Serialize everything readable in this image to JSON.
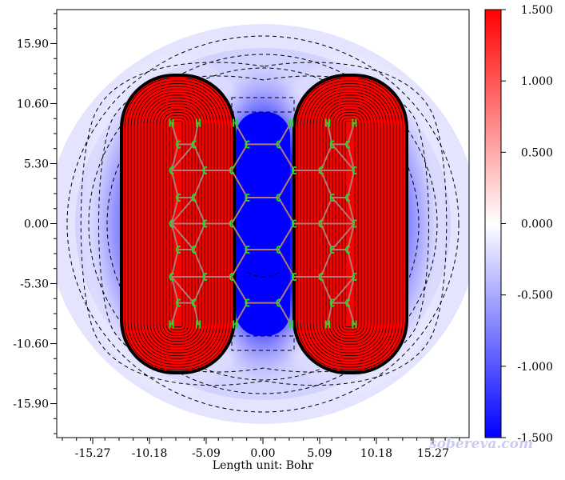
{
  "chart_data": {
    "type": "heatmap",
    "description_kind": "2D contour/color-filled plane map of a molecule",
    "x_ticks": [
      "-15.27",
      "-10.18",
      "-5.09",
      "0.00",
      "5.09",
      "10.18",
      "15.27"
    ],
    "y_ticks": [
      "15.90",
      "10.60",
      "5.30",
      "0.00",
      "-5.30",
      "-10.60",
      "-15.90"
    ],
    "xlabel": "Length unit: Bohr",
    "xlim": [
      -18.5,
      18.5
    ],
    "ylim": [
      -18.9,
      18.9
    ],
    "colorbar": {
      "ticks": [
        "1.500",
        "1.000",
        "0.500",
        "0.000",
        "-0.500",
        "-1.000",
        "-1.500"
      ],
      "range": [
        -1.5,
        1.5
      ],
      "colors": {
        "max": "#ff0000",
        "mid": "#ffffff",
        "min": "#0000ff"
      }
    },
    "atoms": [
      {
        "el": "H",
        "x": -8.2,
        "y": 8.9
      },
      {
        "el": "H",
        "x": -5.8,
        "y": 8.9
      },
      {
        "el": "H",
        "x": -2.5,
        "y": 8.9
      },
      {
        "el": "H",
        "x": 2.5,
        "y": 8.9
      },
      {
        "el": "H",
        "x": 5.8,
        "y": 8.9
      },
      {
        "el": "H",
        "x": 8.2,
        "y": 8.9
      },
      {
        "el": "C",
        "x": -7.6,
        "y": 7.0
      },
      {
        "el": "C",
        "x": -6.2,
        "y": 7.0
      },
      {
        "el": "C",
        "x": -1.4,
        "y": 7.0
      },
      {
        "el": "C",
        "x": 1.4,
        "y": 7.0
      },
      {
        "el": "C",
        "x": 6.2,
        "y": 7.0
      },
      {
        "el": "C",
        "x": 7.6,
        "y": 7.0
      },
      {
        "el": "C",
        "x": -8.2,
        "y": 4.7
      },
      {
        "el": "C",
        "x": -5.2,
        "y": 4.7
      },
      {
        "el": "C",
        "x": -2.8,
        "y": 4.7
      },
      {
        "el": "C",
        "x": 2.8,
        "y": 4.7
      },
      {
        "el": "C",
        "x": 5.2,
        "y": 4.7
      },
      {
        "el": "C",
        "x": 8.2,
        "y": 4.7
      },
      {
        "el": "C",
        "x": -7.6,
        "y": 2.3
      },
      {
        "el": "C",
        "x": -6.2,
        "y": 2.3
      },
      {
        "el": "C",
        "x": -1.4,
        "y": 2.3
      },
      {
        "el": "C",
        "x": 1.4,
        "y": 2.3
      },
      {
        "el": "C",
        "x": 6.2,
        "y": 2.3
      },
      {
        "el": "C",
        "x": 7.6,
        "y": 2.3
      },
      {
        "el": "C",
        "x": -8.2,
        "y": 0.0
      },
      {
        "el": "C",
        "x": -5.2,
        "y": 0.0
      },
      {
        "el": "C",
        "x": -2.8,
        "y": 0.0
      },
      {
        "el": "C",
        "x": 2.8,
        "y": 0.0
      },
      {
        "el": "C",
        "x": 5.2,
        "y": 0.0
      },
      {
        "el": "C",
        "x": 8.2,
        "y": 0.0
      },
      {
        "el": "C",
        "x": -7.6,
        "y": -2.3
      },
      {
        "el": "C",
        "x": -6.2,
        "y": -2.3
      },
      {
        "el": "C",
        "x": -1.4,
        "y": -2.3
      },
      {
        "el": "C",
        "x": 1.4,
        "y": -2.3
      },
      {
        "el": "C",
        "x": 6.2,
        "y": -2.3
      },
      {
        "el": "C",
        "x": 7.6,
        "y": -2.3
      },
      {
        "el": "C",
        "x": -8.2,
        "y": -4.7
      },
      {
        "el": "C",
        "x": -5.2,
        "y": -4.7
      },
      {
        "el": "C",
        "x": -2.8,
        "y": -4.7
      },
      {
        "el": "C",
        "x": 2.8,
        "y": -4.7
      },
      {
        "el": "C",
        "x": 5.2,
        "y": -4.7
      },
      {
        "el": "C",
        "x": 8.2,
        "y": -4.7
      },
      {
        "el": "C",
        "x": -7.6,
        "y": -7.0
      },
      {
        "el": "C",
        "x": -6.2,
        "y": -7.0
      },
      {
        "el": "C",
        "x": -1.4,
        "y": -7.0
      },
      {
        "el": "C",
        "x": 1.4,
        "y": -7.0
      },
      {
        "el": "C",
        "x": 6.2,
        "y": -7.0
      },
      {
        "el": "C",
        "x": 7.6,
        "y": -7.0
      },
      {
        "el": "H",
        "x": -8.2,
        "y": -8.9
      },
      {
        "el": "H",
        "x": -5.8,
        "y": -8.9
      },
      {
        "el": "H",
        "x": -2.5,
        "y": -8.9
      },
      {
        "el": "H",
        "x": 2.5,
        "y": -8.9
      },
      {
        "el": "H",
        "x": 5.8,
        "y": -8.9
      },
      {
        "el": "H",
        "x": 8.2,
        "y": -8.9
      }
    ],
    "watermark": "sobereva.com"
  }
}
